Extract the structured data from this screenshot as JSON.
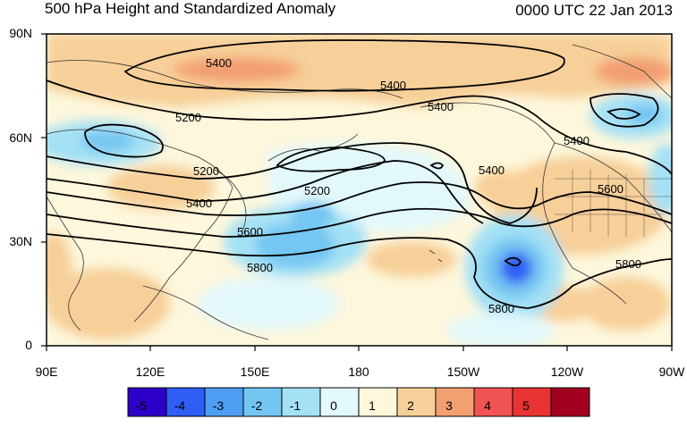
{
  "title": "500 hPa Height and Standardized Anomaly",
  "timestamp": "0000 UTC 22 Jan 2013",
  "lat_labels": [
    "90N",
    "60N",
    "30N",
    "0"
  ],
  "lon_labels": [
    "90E",
    "120E",
    "150E",
    "180",
    "150W",
    "120W",
    "90W"
  ],
  "contour_labels": [
    "5400",
    "5400",
    "5400",
    "5200",
    "5200",
    "5400",
    "5200",
    "5400",
    "5600",
    "5800",
    "5400",
    "5600",
    "5800",
    "5800"
  ],
  "colorbar": {
    "labels": [
      "-5",
      "-4",
      "-3",
      "-2",
      "-1",
      "0",
      "1",
      "2",
      "3",
      "4",
      "5"
    ],
    "colors": [
      "#2d00c8",
      "#2e5ef5",
      "#4d9ef3",
      "#74c6f2",
      "#a4e1f5",
      "#e3f8fb",
      "#fdf7dc",
      "#f7cf98",
      "#f29f72",
      "#f15252",
      "#e83333",
      "#a3001f"
    ]
  }
}
